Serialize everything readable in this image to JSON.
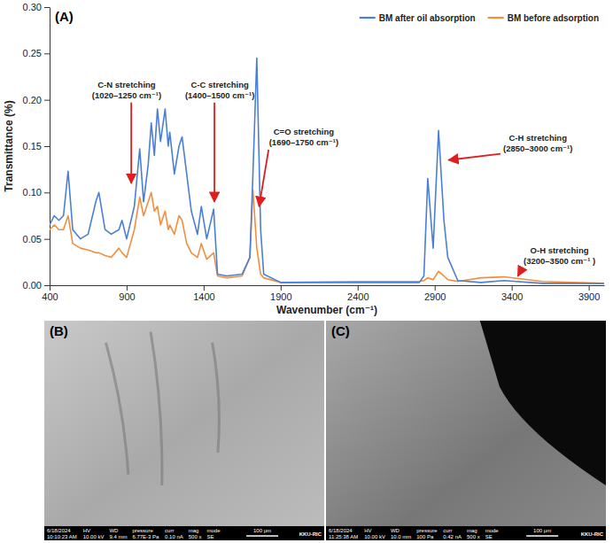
{
  "chart_data": {
    "type": "line",
    "panel_label": "(A)",
    "x_label": "Wavenumber (cm⁻¹)",
    "y_label": "Transmittance (%)",
    "x": [
      400,
      430,
      460,
      490,
      520,
      550,
      600,
      650,
      700,
      720,
      760,
      800,
      850,
      870,
      900,
      950,
      985,
      1010,
      1040,
      1060,
      1080,
      1100,
      1120,
      1150,
      1170,
      1180,
      1210,
      1240,
      1260,
      1290,
      1320,
      1360,
      1385,
      1420,
      1465,
      1490,
      1550,
      1650,
      1700,
      1720,
      1745,
      1770,
      1790,
      1900,
      2400,
      2800,
      2830,
      2855,
      2890,
      2925,
      2960,
      2985,
      3050,
      3200,
      3350,
      3600,
      4000
    ],
    "series": [
      {
        "name": "BM after oil absorption",
        "color": "#4a7fd4",
        "values": [
          0.065,
          0.075,
          0.07,
          0.075,
          0.123,
          0.06,
          0.05,
          0.055,
          0.09,
          0.1,
          0.06,
          0.055,
          0.06,
          0.07,
          0.05,
          0.085,
          0.147,
          0.09,
          0.13,
          0.175,
          0.14,
          0.19,
          0.155,
          0.19,
          0.15,
          0.165,
          0.12,
          0.15,
          0.16,
          0.12,
          0.08,
          0.055,
          0.085,
          0.05,
          0.082,
          0.012,
          0.01,
          0.012,
          0.03,
          0.12,
          0.245,
          0.06,
          0.012,
          0.003,
          0.003,
          0.003,
          0.01,
          0.115,
          0.04,
          0.167,
          0.07,
          0.03,
          0.005,
          0.003,
          0.005,
          0.002,
          0.002
        ]
      },
      {
        "name": "BM before adsorption",
        "color": "#f28e3c",
        "values": [
          0.06,
          0.065,
          0.06,
          0.06,
          0.075,
          0.045,
          0.04,
          0.038,
          0.035,
          0.035,
          0.032,
          0.03,
          0.04,
          0.035,
          0.03,
          0.06,
          0.095,
          0.075,
          0.09,
          0.1,
          0.08,
          0.085,
          0.065,
          0.08,
          0.06,
          0.065,
          0.055,
          0.075,
          0.07,
          0.045,
          0.035,
          0.03,
          0.045,
          0.028,
          0.035,
          0.01,
          0.008,
          0.01,
          0.03,
          0.103,
          0.04,
          0.012,
          0.008,
          0.003,
          0.004,
          0.004,
          0.005,
          0.008,
          0.006,
          0.015,
          0.01,
          0.006,
          0.004,
          0.008,
          0.009,
          0.004,
          0.002
        ]
      }
    ],
    "xlim": [
      400,
      4000
    ],
    "ylim": [
      0,
      0.3
    ],
    "xticks": [
      400,
      900,
      1400,
      1900,
      2400,
      2900,
      3400,
      3900
    ],
    "yticks": [
      {
        "value": 0,
        "label": "0.00"
      },
      {
        "value": 0.05,
        "label": "0.05"
      },
      {
        "value": 0.1,
        "label": "0.10"
      },
      {
        "value": 0.15,
        "label": "0.15"
      },
      {
        "value": 0.2,
        "label": "0.20"
      },
      {
        "value": 0.25,
        "label": "0.25"
      },
      {
        "value": 0.3,
        "label": "0.30"
      }
    ],
    "legend": "top-right",
    "annotations": [
      {
        "text": [
          "C-N stretching",
          "(1020–1250 cm⁻¹)"
        ],
        "point": [
          930,
          0.11
        ],
        "text_at": [
          900,
          0.211
        ]
      },
      {
        "text": [
          "C-C stretching",
          "(1400–1500 cm⁻¹)"
        ],
        "point": [
          1470,
          0.09
        ],
        "text_at": [
          1505,
          0.211
        ]
      },
      {
        "text": [
          "C=O stretching",
          "(1690–1750 cm⁻¹)"
        ],
        "point": [
          1760,
          0.085
        ],
        "text_at": [
          2050,
          0.16
        ]
      },
      {
        "text": [
          "C-H stretching",
          "(2850–3000 cm⁻¹)"
        ],
        "point": [
          2990,
          0.135
        ],
        "text_at": [
          3570,
          0.153
        ]
      },
      {
        "text": [
          "O-H stretching",
          "(3200–3500 cm⁻¹ )"
        ],
        "point": [
          3440,
          0.01
        ],
        "text_at": [
          3710,
          0.032
        ]
      }
    ]
  },
  "images": [
    {
      "label": "(B)",
      "datetime": [
        "6/18/2024",
        "10:10:23 AM"
      ],
      "fields": [
        {
          "name": "HV",
          "value": "10.00 kV"
        },
        {
          "name": "WD",
          "value": "9.4 mm"
        },
        {
          "name": "pressure",
          "value": "6.77E-3 Pa"
        },
        {
          "name": "curr",
          "value": "0.10 nA"
        },
        {
          "name": "mag",
          "value": "500 x"
        },
        {
          "name": "mode",
          "value": "SE"
        }
      ],
      "scale_bar": "100 μm",
      "lab": "KKU-RIC"
    },
    {
      "label": "(C)",
      "datetime": [
        "6/18/2024",
        "11:25:38 AM"
      ],
      "fields": [
        {
          "name": "HV",
          "value": "10.00 kV"
        },
        {
          "name": "WD",
          "value": "10.0 mm"
        },
        {
          "name": "pressure",
          "value": "100 Pa"
        },
        {
          "name": "curr",
          "value": "0.42 nA"
        },
        {
          "name": "mag",
          "value": "500 x"
        },
        {
          "name": "mode",
          "value": "SE"
        }
      ],
      "scale_bar": "100 μm",
      "lab": "KKU-RIC"
    }
  ]
}
